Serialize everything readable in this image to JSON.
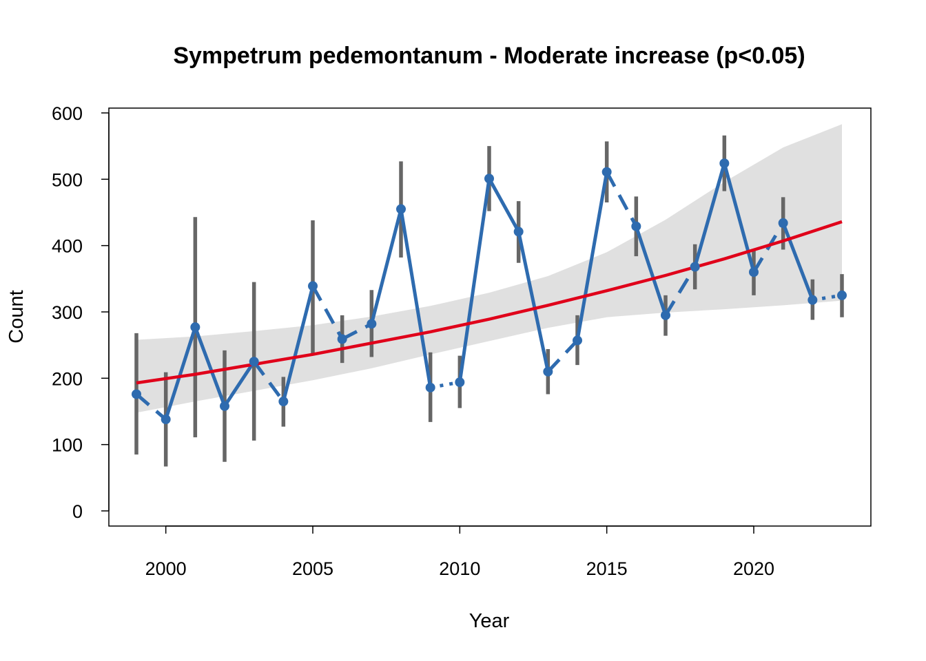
{
  "chart_data": {
    "type": "line",
    "title": "Sympetrum pedemontanum - Moderate increase (p<0.05)",
    "xlabel": "Year",
    "ylabel": "Count",
    "xlim": [
      1998,
      2024
    ],
    "ylim": [
      -20,
      630
    ],
    "x_ticks": [
      2000,
      2005,
      2010,
      2015,
      2020
    ],
    "y_ticks": [
      0,
      100,
      200,
      300,
      400,
      500,
      600
    ],
    "grid": false,
    "legend": "none",
    "colors": {
      "series": "#2E6BAF",
      "error_bar": "#666666",
      "trend": "#E0001A",
      "ci_band": "#E0E0E0",
      "axis": "#000000"
    },
    "series": [
      {
        "x": [
          1999,
          2000,
          2001,
          2002,
          2003,
          2004,
          2005,
          2006,
          2007,
          2008,
          2009,
          2010,
          2011,
          2012,
          2013,
          2014,
          2015,
          2016,
          2017,
          2018,
          2019,
          2020,
          2021,
          2022,
          2023
        ],
        "y": [
          176,
          138,
          277,
          158,
          225,
          165,
          339,
          259,
          282,
          455,
          186,
          194,
          501,
          421,
          210,
          257,
          511,
          429,
          295,
          368,
          524,
          360,
          434,
          318,
          325
        ],
        "lower": [
          85,
          67,
          111,
          74,
          106,
          127,
          236,
          223,
          232,
          382,
          134,
          155,
          452,
          374,
          176,
          220,
          465,
          384,
          264,
          334,
          482,
          325,
          394,
          288,
          292
        ],
        "upper": [
          268,
          209,
          443,
          242,
          345,
          202,
          438,
          295,
          333,
          527,
          239,
          234,
          550,
          467,
          244,
          295,
          557,
          474,
          325,
          402,
          566,
          394,
          473,
          349,
          357
        ]
      }
    ],
    "segment_styles": [
      "dashed",
      "solid",
      "solid",
      "solid",
      "dashed",
      "solid",
      "dashed",
      "dashed",
      "solid",
      "solid",
      "dotted",
      "solid",
      "solid",
      "solid",
      "dashed",
      "solid",
      "dashed",
      "solid",
      "dashed",
      "solid",
      "solid",
      "dashed",
      "solid",
      "dotted"
    ],
    "trend": {
      "x": [
        1999,
        2001,
        2003,
        2005,
        2007,
        2009,
        2011,
        2013,
        2015,
        2017,
        2019,
        2021,
        2023
      ],
      "y": [
        193,
        206,
        221,
        236,
        253,
        270,
        289,
        310,
        332,
        355,
        380,
        407,
        436
      ],
      "ci_lower": [
        148,
        165,
        181,
        197,
        215,
        236,
        256,
        276,
        292,
        299,
        304,
        310,
        317
      ],
      "ci_upper": [
        258,
        263,
        271,
        280,
        293,
        309,
        329,
        354,
        390,
        439,
        496,
        548,
        583
      ]
    }
  }
}
